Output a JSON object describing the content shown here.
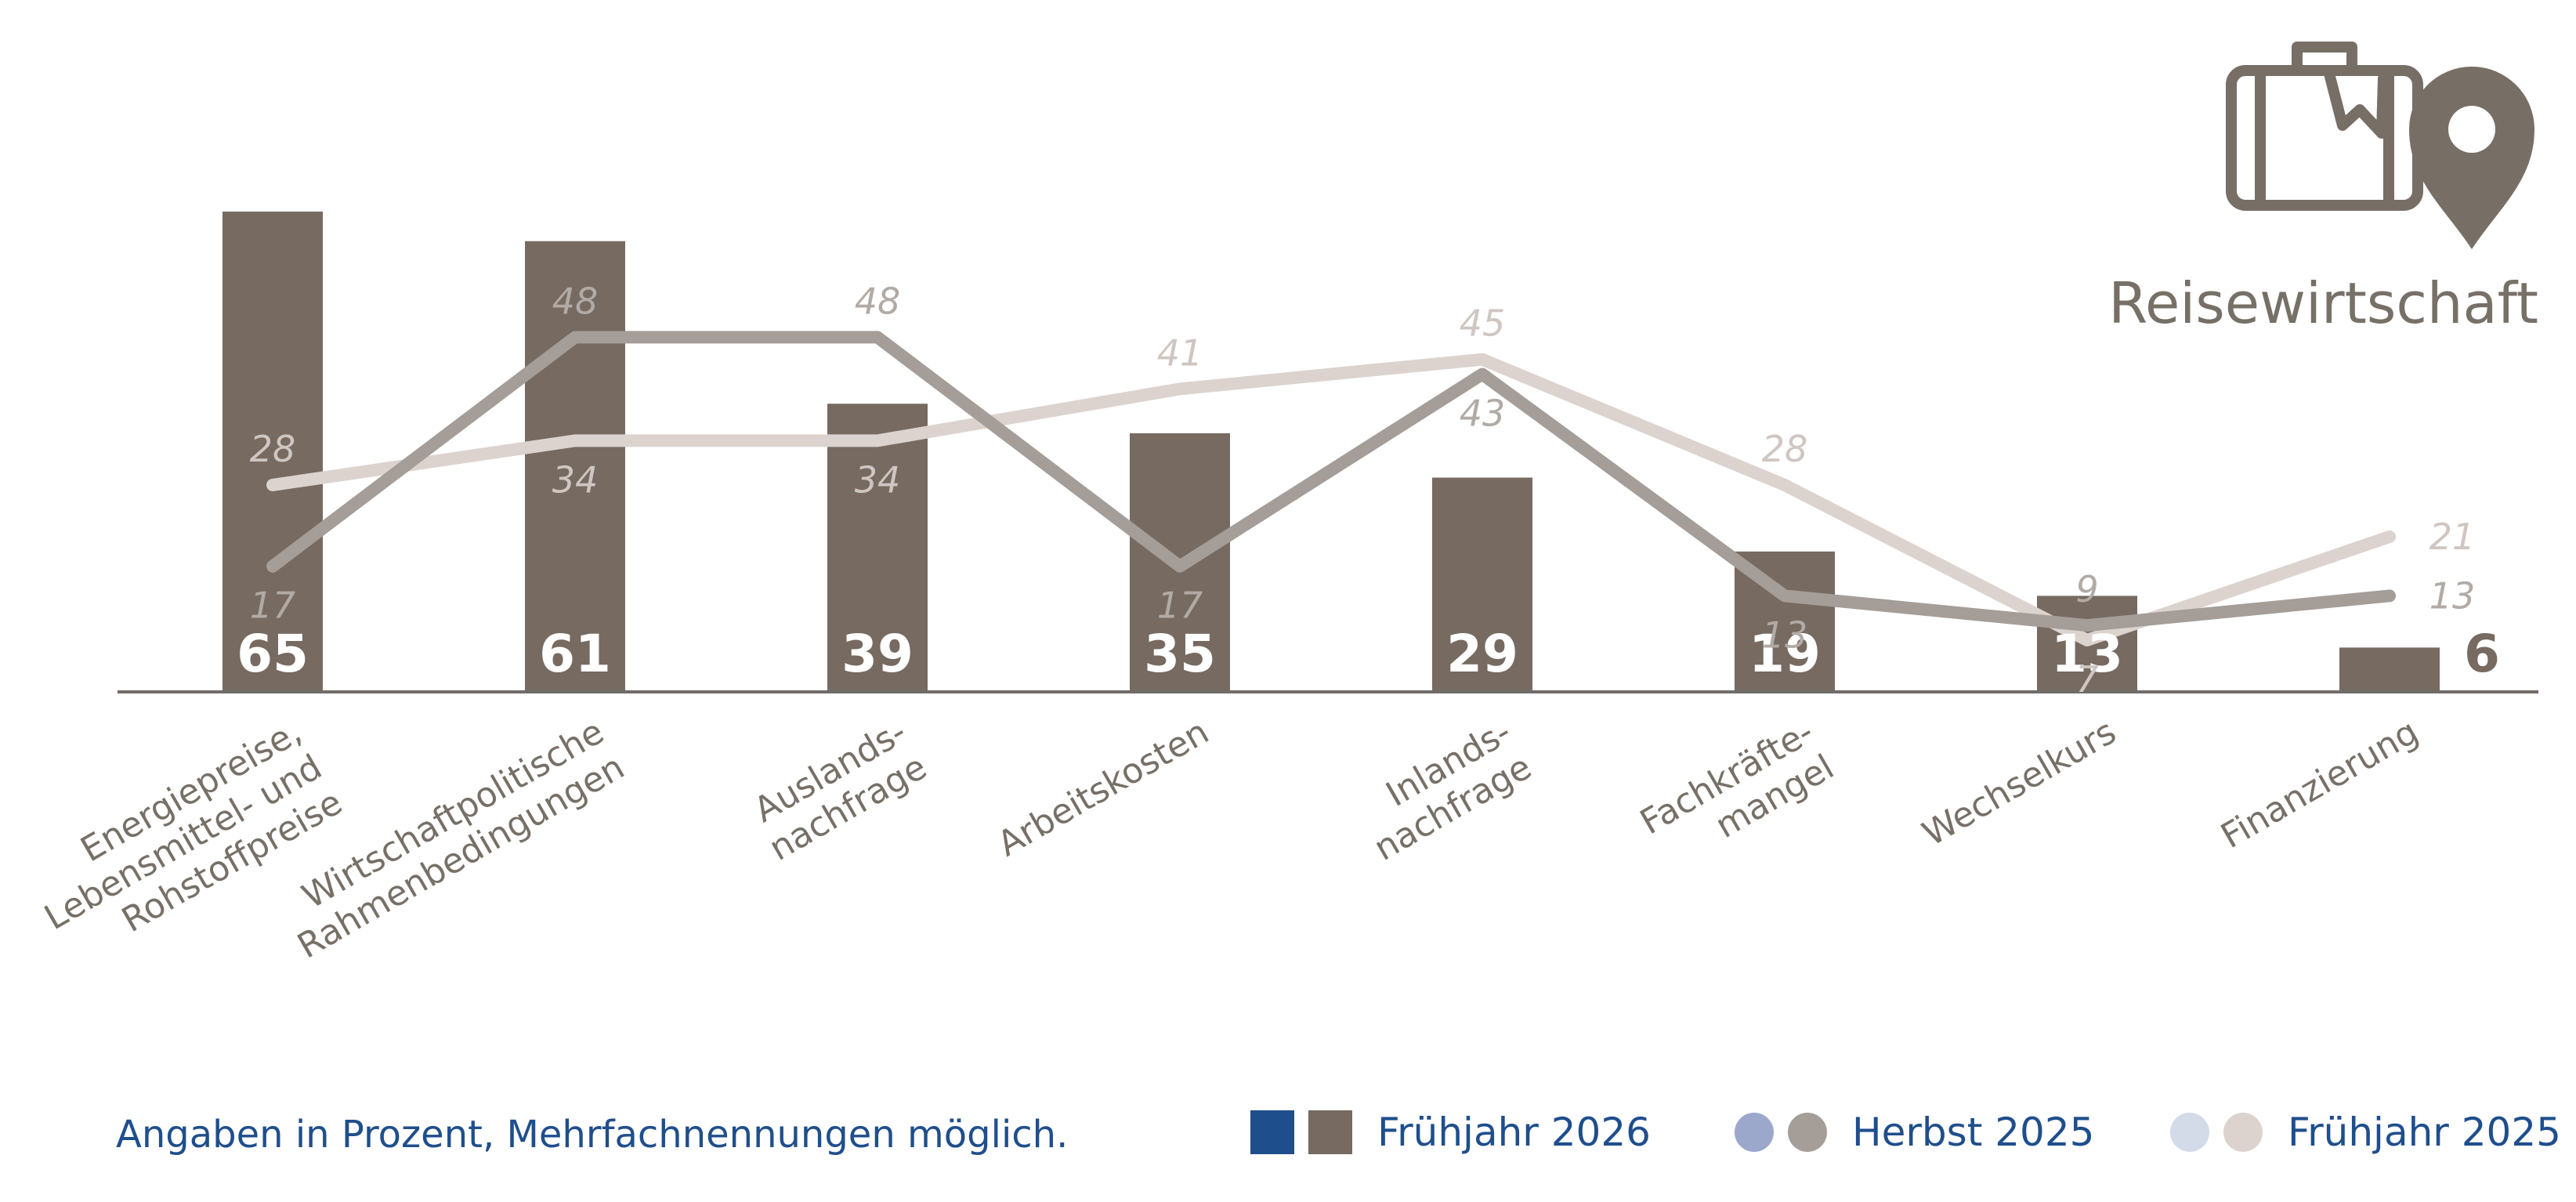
{
  "title": "Reisewirtschaft",
  "icon": "suitcase-location-pin-icon",
  "footnote": "Angaben in Prozent, Mehrfachnennungen möglich.",
  "colors": {
    "bar": "#766a61",
    "line_herbst_2025": "#a49d98",
    "line_fruehjahr_2025": "#dcd3cf",
    "legend_blue_square": "#1f4e8c",
    "legend_blue_dot_herbst": "#9ba8cc",
    "legend_blue_dot_fruehjahr": "#d3dbe8",
    "text_blue": "#1f4e8c",
    "axis": "#6f6c69"
  },
  "legend": [
    {
      "label": "Frühjahr 2026",
      "kind": "bar"
    },
    {
      "label": "Herbst 2025",
      "kind": "line"
    },
    {
      "label": "Frühjahr 2025",
      "kind": "line"
    }
  ],
  "chart_data": {
    "type": "bar",
    "ylim": [
      0,
      70
    ],
    "grid": false,
    "legend_position": "bottom-right",
    "categories": [
      [
        "Energiepreise,",
        "Lebensmittel- und",
        "Rohstoffpreise"
      ],
      [
        "Wirtschaftpolitische",
        "Rahmenbedingungen"
      ],
      [
        "Auslands-",
        "nachfrage"
      ],
      [
        "Arbeitskosten"
      ],
      [
        "Inlands-",
        "nachfrage"
      ],
      [
        "Fachkräfte-",
        "mangel"
      ],
      [
        "Wechselkurs"
      ],
      [
        "Finanzierung"
      ]
    ],
    "series": [
      {
        "name": "Frühjahr 2026",
        "type": "bar",
        "values": [
          65,
          61,
          39,
          35,
          29,
          19,
          13,
          6
        ]
      },
      {
        "name": "Herbst 2025",
        "type": "line",
        "values": [
          17,
          48,
          48,
          17,
          43,
          13,
          9,
          13
        ]
      },
      {
        "name": "Frühjahr 2025",
        "type": "line",
        "values": [
          28,
          34,
          34,
          41,
          45,
          28,
          7,
          21
        ]
      }
    ]
  }
}
